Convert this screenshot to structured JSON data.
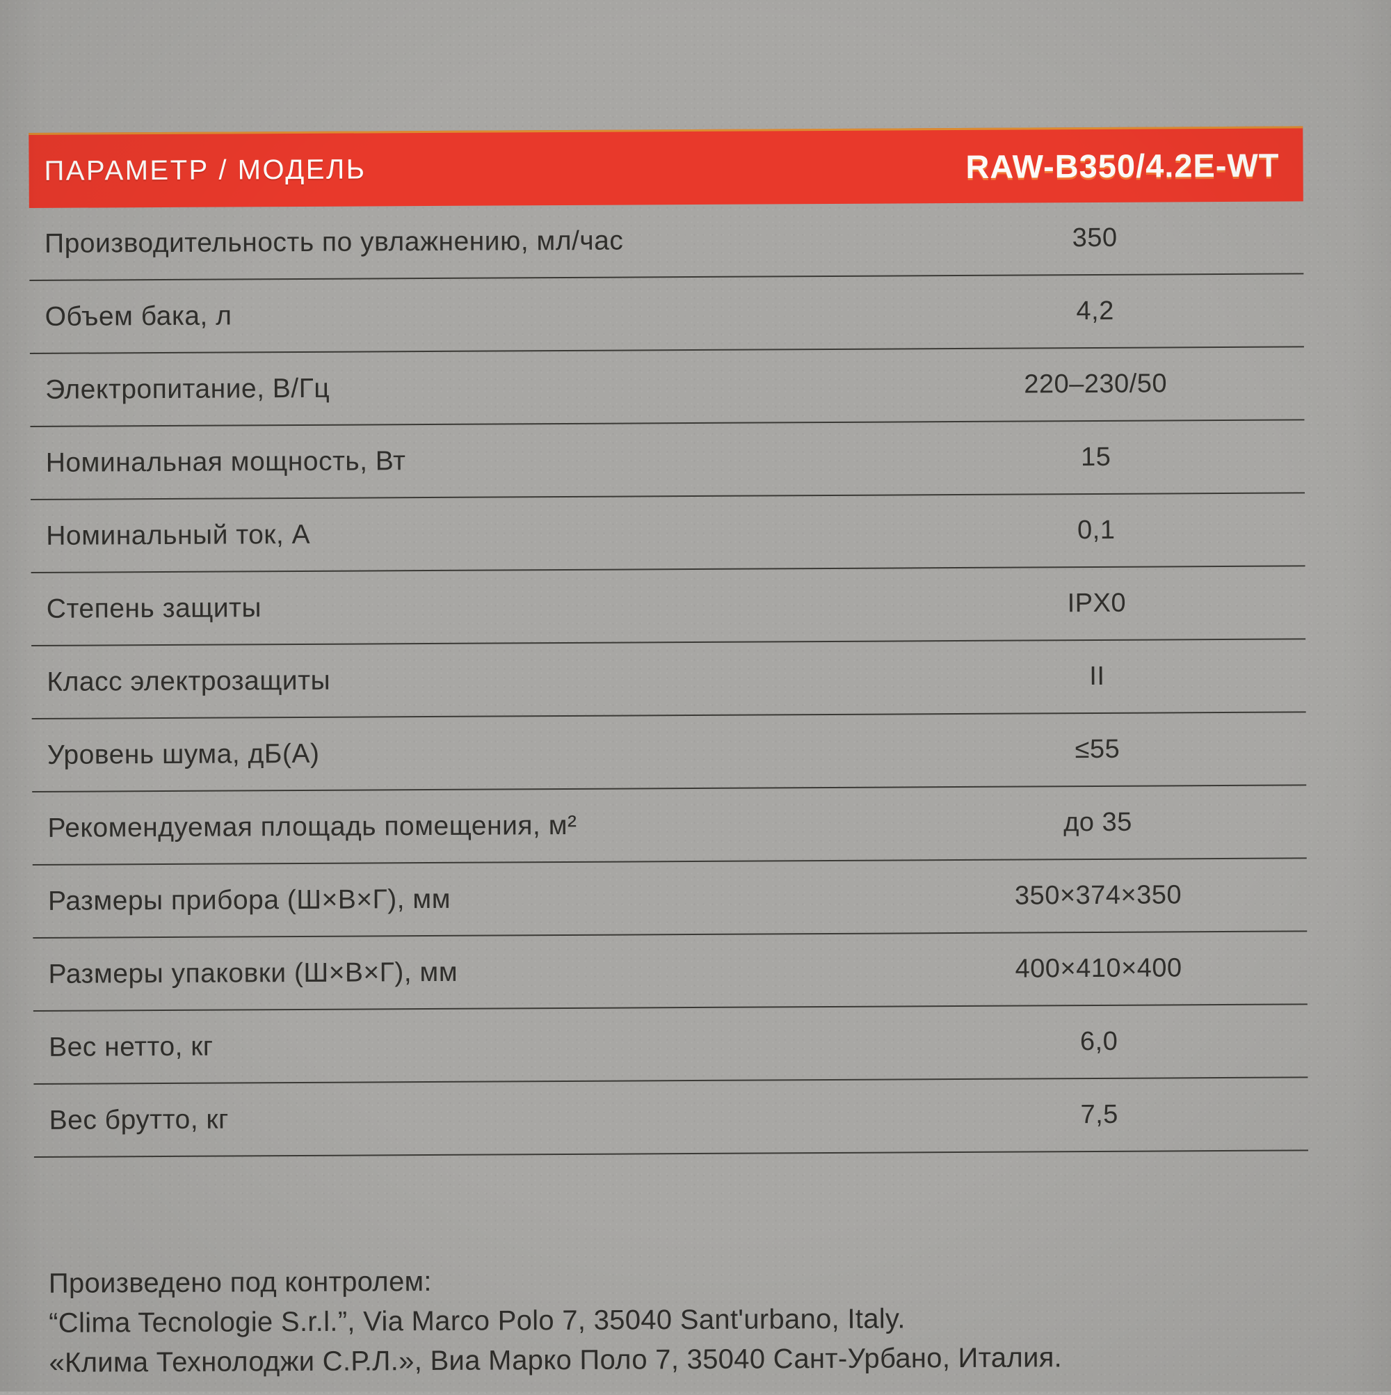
{
  "header": {
    "param_label": "ПАРАМЕТР / МОДЕЛЬ",
    "model": "RAW-B350/4.2E-WT"
  },
  "rows": [
    {
      "label": "Производительность по увлажнению, мл/час",
      "value": "350"
    },
    {
      "label": "Объем бака, л",
      "value": "4,2"
    },
    {
      "label": "Электропитание, В/Гц",
      "value": "220–230/50"
    },
    {
      "label": "Номинальная мощность, Вт",
      "value": "15"
    },
    {
      "label": "Номинальный ток, А",
      "value": "0,1"
    },
    {
      "label": "Степень защиты",
      "value": "IPX0"
    },
    {
      "label": "Класс электрозащиты",
      "value": "II"
    },
    {
      "label": "Уровень шума, дБ(А)",
      "value": "≤55"
    },
    {
      "label": "Рекомендуемая площадь помещения, м²",
      "value": "до 35"
    },
    {
      "label": "Размеры прибора (Ш×В×Г), мм",
      "value": "350×374×350"
    },
    {
      "label": "Размеры упаковки (Ш×В×Г), мм",
      "value": "400×410×400"
    },
    {
      "label": "Вес нетто, кг",
      "value": "6,0"
    },
    {
      "label": "Вес брутто, кг",
      "value": "7,5"
    }
  ],
  "footer": {
    "line1": "Произведено под контролем:",
    "line2": "“Clima Tecnologie S.r.l.”, Via Marco Polo 7, 35040 Sant'urbano, Italy.",
    "line3": "«Клима Технолоджи С.Р.Л.», Виа Марко Поло 7, 35040 Сант-Урбано, Италия."
  },
  "colors": {
    "accent_red": "#e8392b",
    "background_gray": "#a8a7a4",
    "divider_line": "#3b3a36",
    "text": "#2f2e2b",
    "header_text": "#fdfdfb"
  }
}
